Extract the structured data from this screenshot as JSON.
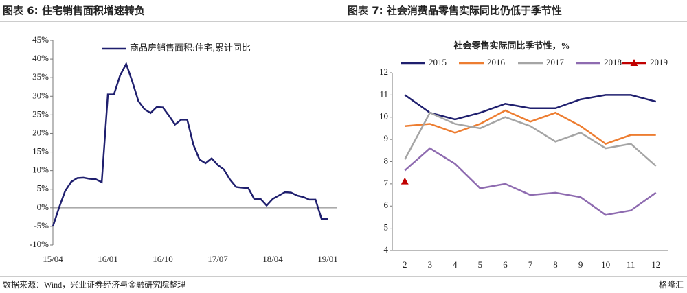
{
  "source": "数据来源：Wind，兴业证券经济与金融研究院整理",
  "watermark": "格隆汇",
  "chart_data": [
    {
      "type": "line",
      "title": "图表 6:  住宅销售面积增速转负",
      "categories": [
        "15/04",
        null,
        null,
        null,
        null,
        null,
        null,
        null,
        null,
        "16/01",
        null,
        null,
        null,
        null,
        null,
        null,
        null,
        null,
        "16/10",
        null,
        null,
        null,
        null,
        null,
        null,
        null,
        null,
        "17/07",
        null,
        null,
        null,
        null,
        null,
        null,
        null,
        null,
        "18/04",
        null,
        null,
        null,
        null,
        null,
        null,
        null,
        null,
        "19/01"
      ],
      "series": [
        {
          "name": "商品房销售面积:住宅,累计同比",
          "color": "#1f1f6e",
          "values": [
            -5,
            0,
            4.5,
            7,
            8,
            8.1,
            7.8,
            7.7,
            6.9,
            30.5,
            30.5,
            35.6,
            38.7,
            34,
            28.7,
            26.5,
            25.5,
            27.1,
            27,
            24.8,
            22.4,
            23.7,
            23.7,
            17,
            13,
            12,
            13.3,
            11.5,
            10.3,
            7.6,
            5.6,
            5.4,
            5.3,
            2.3,
            2.4,
            0.6,
            2.4,
            3.3,
            4.2,
            4.1,
            3.3,
            2.9,
            2.2,
            2.2,
            -3,
            -3
          ]
        }
      ],
      "ylim": [
        -10,
        45
      ],
      "yticks": [
        {
          "value": -10,
          "label": "-10%"
        },
        {
          "value": -5,
          "label": "-5%"
        },
        {
          "value": 0,
          "label": "0%"
        },
        {
          "value": 5,
          "label": "5%"
        },
        {
          "value": 10,
          "label": "10%"
        },
        {
          "value": 15,
          "label": "15%"
        },
        {
          "value": 20,
          "label": "20%"
        },
        {
          "value": 25,
          "label": "25%"
        },
        {
          "value": 30,
          "label": "30%"
        },
        {
          "value": 35,
          "label": "35%"
        },
        {
          "value": 40,
          "label": "40%"
        },
        {
          "value": 45,
          "label": "45%"
        }
      ],
      "grid": false
    },
    {
      "type": "line",
      "title": "图表 7:  社会消费品零售实际同比仍低于季节性",
      "subtitle": "社会零售实际同比季节性，%",
      "categories": [
        "2",
        "3",
        "4",
        "5",
        "6",
        "7",
        "8",
        "9",
        "10",
        "11",
        "12"
      ],
      "series": [
        {
          "name": "2015",
          "color": "#1f1f6e",
          "values": [
            11,
            10.2,
            9.9,
            10.2,
            10.6,
            10.4,
            10.4,
            10.8,
            11,
            11,
            10.7
          ]
        },
        {
          "name": "2016",
          "color": "#ed7d31",
          "values": [
            9.6,
            9.7,
            9.3,
            9.7,
            10.3,
            9.8,
            10.2,
            9.6,
            8.8,
            9.2,
            9.2
          ]
        },
        {
          "name": "2017",
          "color": "#a5a5a5",
          "values": [
            8.1,
            10.2,
            9.7,
            9.5,
            10,
            9.6,
            8.9,
            9.3,
            8.6,
            8.8,
            7.8
          ]
        },
        {
          "name": "2018",
          "color": "#8e6bb0",
          "values": [
            7.6,
            8.6,
            7.9,
            6.8,
            7,
            6.5,
            6.6,
            6.4,
            5.6,
            5.8,
            6.6
          ]
        },
        {
          "name": "2019",
          "color": "#c00000",
          "marker": "triangle",
          "values": [
            7.1,
            null,
            null,
            null,
            null,
            null,
            null,
            null,
            null,
            null,
            null
          ]
        }
      ],
      "ylim": [
        4,
        12
      ],
      "yticks": [
        4,
        5,
        6,
        7,
        8,
        9,
        10,
        11,
        12
      ],
      "grid": false
    }
  ]
}
